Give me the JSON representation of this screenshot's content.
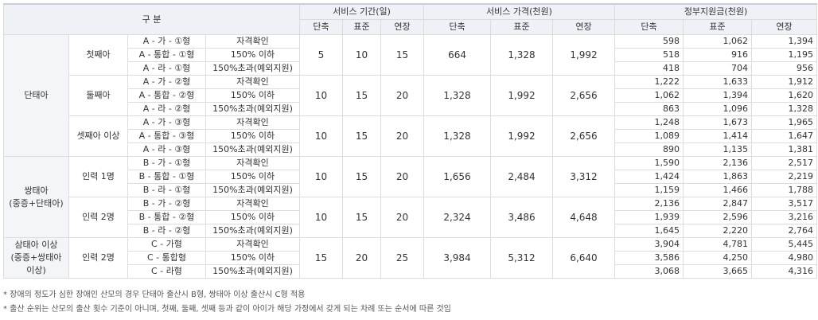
{
  "header": {
    "category": "구 분",
    "service_period": "서비스 기간(일)",
    "service_price": "서비스 가격(천원)",
    "subsidy": "정부지원금(천원)",
    "sub": [
      "단축",
      "표준",
      "연장"
    ]
  },
  "groups": [
    {
      "name": "단태아",
      "subgroups": [
        {
          "name": "첫째아",
          "period": [
            "5",
            "10",
            "15"
          ],
          "price": [
            "664",
            "1,328",
            "1,992"
          ],
          "rows": [
            {
              "type": "A - 가 - ①형",
              "cond": "자격확인",
              "subsidy": [
                "598",
                "1,062",
                "1,394"
              ]
            },
            {
              "type": "A - 통합 - ①형",
              "cond": "150% 이하",
              "subsidy": [
                "518",
                "916",
                "1,195"
              ]
            },
            {
              "type": "A - 라 - ①형",
              "cond": "150%초과(예외지원)",
              "subsidy": [
                "418",
                "704",
                "956"
              ]
            }
          ]
        },
        {
          "name": "둘째아",
          "period": [
            "10",
            "15",
            "20"
          ],
          "price": [
            "1,328",
            "1,992",
            "2,656"
          ],
          "rows": [
            {
              "type": "A - 가 - ②형",
              "cond": "자격확인",
              "subsidy": [
                "1,222",
                "1,633",
                "1,912"
              ]
            },
            {
              "type": "A - 통합 - ②형",
              "cond": "150% 이하",
              "subsidy": [
                "1,062",
                "1,394",
                "1,620"
              ]
            },
            {
              "type": "A - 라 - ②형",
              "cond": "150%초과(예외지원)",
              "subsidy": [
                "863",
                "1,096",
                "1,328"
              ]
            }
          ]
        },
        {
          "name": "셋째아 이상",
          "period": [
            "10",
            "15",
            "20"
          ],
          "price": [
            "1,328",
            "1,992",
            "2,656"
          ],
          "rows": [
            {
              "type": "A - 가 - ③형",
              "cond": "자격확인",
              "subsidy": [
                "1,248",
                "1,673",
                "1,965"
              ]
            },
            {
              "type": "A - 통합 - ③형",
              "cond": "150% 이하",
              "subsidy": [
                "1,089",
                "1,414",
                "1,647"
              ]
            },
            {
              "type": "A - 라 - ③형",
              "cond": "150%초과(예외지원)",
              "subsidy": [
                "890",
                "1,135",
                "1,381"
              ]
            }
          ]
        }
      ]
    },
    {
      "name": "쌍태아\n(중증+단태아)",
      "subgroups": [
        {
          "name": "인력 1명",
          "period": [
            "10",
            "15",
            "20"
          ],
          "price": [
            "1,656",
            "2,484",
            "3,312"
          ],
          "rows": [
            {
              "type": "B - 가 - ①형",
              "cond": "자격확인",
              "subsidy": [
                "1,590",
                "2,136",
                "2,517"
              ]
            },
            {
              "type": "B - 통합 - ①형",
              "cond": "150% 이하",
              "subsidy": [
                "1,424",
                "1,863",
                "2,219"
              ]
            },
            {
              "type": "B - 라 - ①형",
              "cond": "150%초과(예외지원)",
              "subsidy": [
                "1,159",
                "1,466",
                "1,788"
              ]
            }
          ]
        },
        {
          "name": "인력 2명",
          "period": [
            "10",
            "15",
            "20"
          ],
          "price": [
            "2,324",
            "3,486",
            "4,648"
          ],
          "rows": [
            {
              "type": "B - 가 - ②형",
              "cond": "자격확인",
              "subsidy": [
                "2,136",
                "2,847",
                "3,517"
              ]
            },
            {
              "type": "B - 통합 - ②형",
              "cond": "150% 이하",
              "subsidy": [
                "1,939",
                "2,596",
                "3,216"
              ]
            },
            {
              "type": "B - 라 - ②형",
              "cond": "150%초과(예외지원)",
              "subsidy": [
                "1,645",
                "2,220",
                "2,764"
              ]
            }
          ]
        }
      ]
    },
    {
      "name": "삼태아 이상\n(중증+쌍태아\n이상)",
      "subgroups": [
        {
          "name": "인력 2명",
          "period": [
            "15",
            "20",
            "25"
          ],
          "price": [
            "3,984",
            "5,312",
            "6,640"
          ],
          "rows": [
            {
              "type": "C - 가형",
              "cond": "자격확인",
              "subsidy": [
                "3,904",
                "4,781",
                "5,445"
              ]
            },
            {
              "type": "C - 통합형",
              "cond": "150% 이하",
              "subsidy": [
                "3,586",
                "4,250",
                "4,980"
              ]
            },
            {
              "type": "C - 라형",
              "cond": "150%초과(예외지원)",
              "subsidy": [
                "3,068",
                "3,665",
                "4,316"
              ]
            }
          ]
        }
      ]
    }
  ],
  "notes": [
    "* 장애의 정도가 심한 장애인 산모의 경우 단태아 출산시 B형, 쌍태아 이상 출산시 C형 적용",
    "* 출산 순위는 산모의 출산 횟수 기준이 아니며, 첫째, 둘째, 셋째 등과 같이 아이가 해당 가정에서 갖게 되는 차례 또는 순서에 따른 것임"
  ]
}
